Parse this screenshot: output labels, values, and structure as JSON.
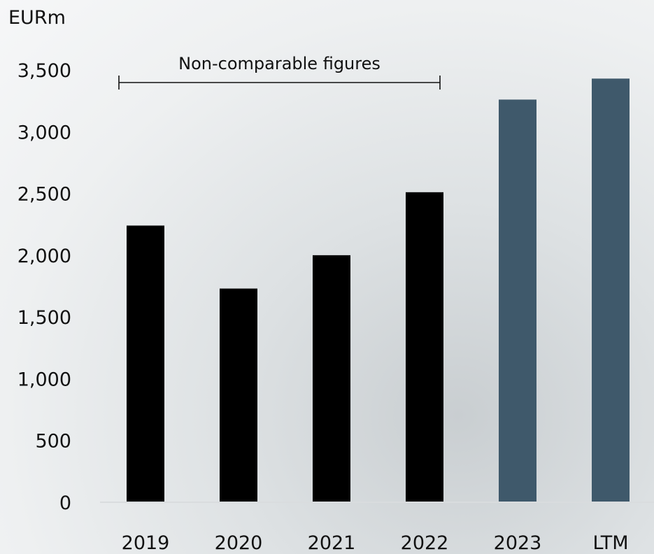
{
  "chart_data": {
    "type": "bar",
    "unit_label": "EURm",
    "categories": [
      "2019",
      "2020",
      "2021",
      "2022",
      "2023",
      "LTM"
    ],
    "values": [
      2240,
      1730,
      2000,
      2510,
      3260,
      3430
    ],
    "bar_colors": [
      "#000000",
      "#000000",
      "#000000",
      "#000000",
      "#3f596b",
      "#3f596b"
    ],
    "ylim": [
      0,
      3500
    ],
    "yticks": [
      0,
      500,
      1000,
      1500,
      2000,
      2500,
      3000,
      3500
    ],
    "ytick_labels": [
      "0",
      "500",
      "1,000",
      "1,500",
      "2,000",
      "2,500",
      "3,000",
      "3,500"
    ],
    "annotation": {
      "text": "Non-comparable figures",
      "from_category": "2019",
      "to_category": "2022"
    },
    "grid": false,
    "legend": "none"
  }
}
